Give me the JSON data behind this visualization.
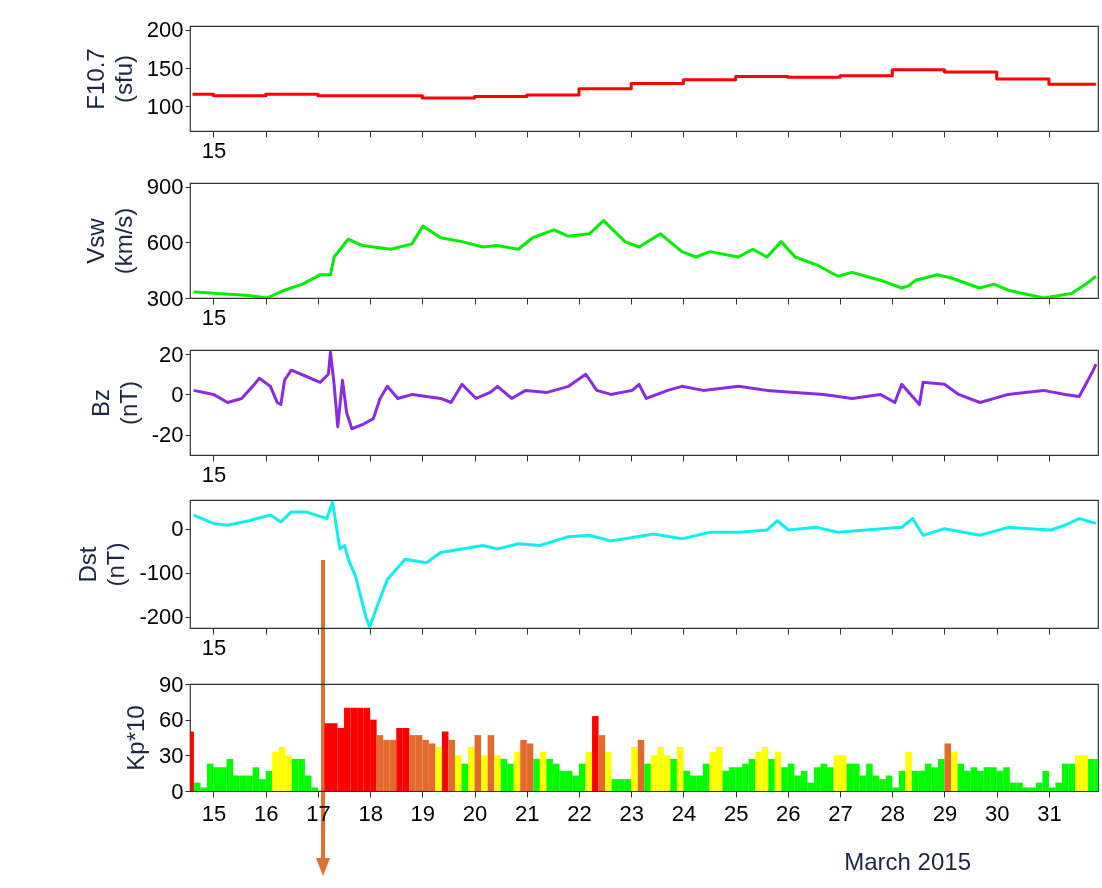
{
  "chart_data": [
    {
      "type": "step",
      "ylabel": "F10.7 (sfu)",
      "color": "#ff0000",
      "xlim": [
        14.55,
        31.94
      ],
      "ylim": [
        68,
        205
      ],
      "yticks": [
        100,
        150,
        200
      ],
      "tick_labels": "y",
      "annotations": [
        "15"
      ],
      "xticks": [
        15,
        16,
        17,
        18,
        19,
        20,
        21,
        22,
        23,
        24,
        25,
        26,
        27,
        28,
        29,
        30,
        31
      ],
      "x": [
        14.6,
        15,
        16,
        17,
        18,
        19,
        20,
        21,
        22,
        23,
        24,
        25,
        26,
        27,
        28,
        29,
        30,
        31,
        31.9
      ],
      "values": [
        116,
        114,
        116,
        114,
        114,
        111,
        113,
        115,
        123,
        130,
        135,
        139,
        138,
        140,
        148,
        145,
        136,
        129,
        129
      ]
    },
    {
      "type": "line",
      "ylabel": "Vsw (km/s)",
      "color": "#00ee00",
      "xlim": [
        14.55,
        31.94
      ],
      "ylim": [
        300,
        920
      ],
      "yticks": [
        300,
        600,
        900
      ],
      "tick_labels": "y",
      "annotations": [
        "15"
      ],
      "xticks": [
        15,
        16,
        17,
        18,
        19,
        20,
        21,
        22,
        23,
        24,
        25,
        26,
        27,
        28,
        29,
        30,
        31
      ],
      "x": [
        14.62,
        15,
        15.68,
        16.02,
        16.36,
        16.7,
        17.04,
        17.24,
        17.31,
        17.58,
        17.85,
        18.4,
        18.8,
        19.01,
        19.35,
        19.76,
        20.16,
        20.43,
        20.84,
        21.11,
        21.52,
        21.79,
        22.2,
        22.47,
        22.88,
        23.15,
        23.56,
        23.97,
        24.24,
        24.51,
        25.05,
        25.33,
        25.6,
        25.87,
        26.14,
        26.55,
        26.96,
        27.23,
        27.77,
        28.18,
        28.32,
        28.45,
        28.86,
        29.13,
        29.67,
        29.95,
        30.22,
        30.9,
        31.44,
        31.71,
        31.9
      ],
      "values": [
        333,
        325,
        313,
        300,
        342,
        375,
        425,
        425,
        521,
        617,
        583,
        563,
        592,
        688,
        625,
        604,
        575,
        583,
        563,
        625,
        667,
        633,
        646,
        717,
        604,
        575,
        646,
        550,
        521,
        550,
        521,
        563,
        521,
        604,
        521,
        479,
        417,
        438,
        396,
        354,
        367,
        396,
        425,
        408,
        354,
        375,
        342,
        300,
        325,
        375,
        417
      ]
    },
    {
      "type": "line",
      "ylabel": "Bz (nT)",
      "color": "#8a2be2",
      "xlim": [
        14.55,
        31.94
      ],
      "ylim": [
        -30,
        22
      ],
      "yticks": [
        -20,
        0,
        20
      ],
      "tick_labels": "y",
      "annotations": [
        "15"
      ],
      "xticks": [
        15,
        16,
        17,
        18,
        19,
        20,
        21,
        22,
        23,
        24,
        25,
        26,
        27,
        28,
        29,
        30,
        31
      ],
      "x": [
        14.62,
        15,
        15.27,
        15.54,
        15.75,
        15.88,
        16.09,
        16.22,
        16.29,
        16.36,
        16.49,
        16.77,
        17.04,
        17.2,
        17.24,
        17.31,
        17.38,
        17.47,
        17.55,
        17.65,
        17.85,
        18.06,
        18.19,
        18.33,
        18.53,
        18.81,
        19.08,
        19.35,
        19.55,
        19.76,
        20.03,
        20.3,
        20.44,
        20.71,
        20.98,
        21.39,
        21.8,
        22.13,
        22.34,
        22.61,
        23.02,
        23.15,
        23.29,
        23.7,
        23.97,
        24.38,
        25.06,
        25.6,
        26.14,
        26.69,
        27.23,
        27.77,
        28.05,
        28.18,
        28.52,
        28.59,
        29,
        29.27,
        29.68,
        30.22,
        30.9,
        31.31,
        31.58,
        31.85,
        31.9
      ],
      "values": [
        2,
        0,
        -4,
        -2,
        4,
        8,
        4,
        -4,
        -5,
        7,
        12,
        9,
        6,
        10,
        21,
        5,
        -16,
        7,
        -9,
        -17,
        -15,
        -12,
        -2,
        4,
        -2,
        0,
        -1,
        -2,
        -4,
        5,
        -2,
        1,
        4,
        -2,
        2,
        1,
        4,
        10,
        2,
        0,
        2,
        5,
        -2,
        2,
        4,
        2,
        4,
        2,
        1,
        0,
        -2,
        0,
        -4,
        5,
        -5,
        6,
        5,
        0,
        -4,
        0,
        2,
        0,
        -1,
        12,
        15
      ]
    },
    {
      "type": "line",
      "ylabel": "Dst (nT)",
      "color": "#11eeee",
      "xlim": [
        14.55,
        31.94
      ],
      "ylim": [
        -225,
        65
      ],
      "yticks": [
        -200,
        -100,
        0
      ],
      "tick_labels": "y",
      "annotations": [
        "15"
      ],
      "xticks": [
        15,
        16,
        17,
        18,
        19,
        20,
        21,
        22,
        23,
        24,
        25,
        26,
        27,
        28,
        29,
        30,
        31
      ],
      "x": [
        14.62,
        15,
        15.27,
        15.68,
        16.09,
        16.29,
        16.49,
        16.77,
        17.04,
        17.17,
        17.28,
        17.34,
        17.42,
        17.51,
        17.58,
        17.72,
        17.92,
        17.99,
        18.13,
        18.33,
        18.67,
        19.08,
        19.35,
        19.76,
        20.16,
        20.44,
        20.84,
        21.25,
        21.8,
        22.2,
        22.61,
        22.88,
        23.43,
        23.97,
        24.51,
        25.06,
        25.6,
        25.8,
        26.01,
        26.55,
        26.96,
        27.5,
        28.18,
        28.39,
        28.59,
        29,
        29.68,
        30.22,
        30.63,
        31.04,
        31.31,
        31.58,
        31.9
      ],
      "values": [
        31,
        12,
        8,
        18,
        31,
        15,
        38,
        38,
        28,
        23,
        60,
        15,
        -46,
        -38,
        -69,
        -108,
        -200,
        -223,
        -177,
        -115,
        -69,
        -77,
        -54,
        -46,
        -38,
        -46,
        -34,
        -38,
        -18,
        -15,
        -28,
        -23,
        -12,
        -23,
        -8,
        -8,
        -3,
        18,
        -3,
        3,
        -8,
        -3,
        3,
        23,
        -15,
        0,
        -15,
        3,
        0,
        -3,
        8,
        23,
        12
      ]
    },
    {
      "type": "bar",
      "ylabel": "Kp*10",
      "xlabel": "March 2015",
      "xlim": [
        14.55,
        31.94
      ],
      "ylim": [
        0,
        90
      ],
      "yticks": [
        0,
        30,
        60,
        90
      ],
      "xticks": [
        15,
        16,
        17,
        18,
        19,
        20,
        21,
        22,
        23,
        24,
        25,
        26,
        27,
        28,
        29,
        30,
        31
      ],
      "x": [
        14.5625,
        14.6875,
        14.8125,
        14.9375,
        15.0625,
        15.1875,
        15.3125,
        15.4375,
        15.5625,
        15.6875,
        15.8125,
        15.9375,
        16.0625,
        16.1875,
        16.3125,
        16.4375,
        16.5625,
        16.6875,
        16.8125,
        16.9375,
        17.0625,
        17.1875,
        17.3125,
        17.4375,
        17.5625,
        17.6875,
        17.8125,
        17.9375,
        18.0625,
        18.1875,
        18.3125,
        18.4375,
        18.5625,
        18.6875,
        18.8125,
        18.9375,
        19.0625,
        19.1875,
        19.3125,
        19.4375,
        19.5625,
        19.6875,
        19.8125,
        19.9375,
        20.0625,
        20.1875,
        20.3125,
        20.4375,
        20.5625,
        20.6875,
        20.8125,
        20.9375,
        21.0625,
        21.1875,
        21.3125,
        21.4375,
        21.5625,
        21.6875,
        21.8125,
        21.9375,
        22.0625,
        22.1875,
        22.3125,
        22.4375,
        22.5625,
        22.6875,
        22.8125,
        22.9375,
        23.0625,
        23.1875,
        23.3125,
        23.4375,
        23.5625,
        23.6875,
        23.8125,
        23.9375,
        24.0625,
        24.1875,
        24.3125,
        24.4375,
        24.5625,
        24.6875,
        24.8125,
        24.9375,
        25.0625,
        25.1875,
        25.3125,
        25.4375,
        25.5625,
        25.6875,
        25.8125,
        25.9375,
        26.0625,
        26.1875,
        26.3125,
        26.4375,
        26.5625,
        26.6875,
        26.8125,
        26.9375,
        27.0625,
        27.1875,
        27.3125,
        27.4375,
        27.5625,
        27.6875,
        27.8125,
        27.9375,
        28.0625,
        28.1875,
        28.3125,
        28.4375,
        28.5625,
        28.6875,
        28.8125,
        28.9375,
        29.0625,
        29.1875,
        29.3125,
        29.4375,
        29.5625,
        29.6875,
        29.8125,
        29.9375,
        30.0625,
        30.1875,
        30.3125,
        30.4375,
        30.5625,
        30.6875,
        30.8125,
        30.9375,
        31.0625,
        31.1875,
        31.3125,
        31.4375,
        31.5625,
        31.6875,
        31.8125,
        31.9375
      ],
      "values": [
        50,
        7,
        3,
        23,
        20,
        20,
        27,
        13,
        13,
        13,
        20,
        10,
        17,
        33,
        37,
        30,
        27,
        27,
        13,
        3,
        null,
        57,
        57,
        53,
        70,
        70,
        70,
        70,
        60,
        47,
        43,
        43,
        53,
        53,
        47,
        47,
        43,
        40,
        37,
        50,
        43,
        30,
        23,
        37,
        47,
        30,
        47,
        30,
        27,
        23,
        33,
        43,
        40,
        27,
        33,
        27,
        23,
        17,
        17,
        13,
        23,
        33,
        63,
        47,
        33,
        10,
        10,
        10,
        37,
        43,
        23,
        30,
        37,
        30,
        27,
        37,
        17,
        13,
        13,
        23,
        33,
        37,
        17,
        20,
        20,
        23,
        27,
        33,
        37,
        27,
        33,
        20,
        23,
        13,
        17,
        7,
        20,
        23,
        20,
        30,
        30,
        23,
        23,
        13,
        23,
        13,
        10,
        13,
        3,
        17,
        33,
        17,
        17,
        23,
        20,
        27,
        40,
        33,
        23,
        17,
        20,
        17,
        20,
        20,
        17,
        20,
        7,
        7,
        3,
        3,
        7,
        17,
        3,
        7,
        23,
        23,
        30,
        30,
        27,
        27
      ],
      "colors": [
        "#ff0000",
        "#00ff00",
        "#00ff00",
        "#00ff00",
        "#00ff00",
        "#00ff00",
        "#00ff00",
        "#00ff00",
        "#00ff00",
        "#00ff00",
        "#00ff00",
        "#00ff00",
        "#00ff00",
        "#ffff00",
        "#ffff00",
        "#ffff00",
        "#00ff00",
        "#00ff00",
        "#00ff00",
        "#00ff00",
        "#00ff00",
        "#ff0000",
        "#ff0000",
        "#ff0000",
        "#ff0000",
        "#ff0000",
        "#ff0000",
        "#ff0000",
        "#ff0000",
        "#e4692d",
        "#e4692d",
        "#e4692d",
        "#ff0000",
        "#ff0000",
        "#e4692d",
        "#e4692d",
        "#e4692d",
        "#e4692d",
        "#ffff00",
        "#ff0000",
        "#e4692d",
        "#ffff00",
        "#00ff00",
        "#ffff00",
        "#e4692d",
        "#ffff00",
        "#e4692d",
        "#ffff00",
        "#00ff00",
        "#00ff00",
        "#ffff00",
        "#e4692d",
        "#e4692d",
        "#00ff00",
        "#ffff00",
        "#00ff00",
        "#00ff00",
        "#00ff00",
        "#00ff00",
        "#00ff00",
        "#00ff00",
        "#ffff00",
        "#ff0000",
        "#e4692d",
        "#ffff00",
        "#00ff00",
        "#00ff00",
        "#00ff00",
        "#ffff00",
        "#e4692d",
        "#00ff00",
        "#ffff00",
        "#ffff00",
        "#ffff00",
        "#00ff00",
        "#ffff00",
        "#00ff00",
        "#00ff00",
        "#00ff00",
        "#00ff00",
        "#ffff00",
        "#ffff00",
        "#00ff00",
        "#00ff00",
        "#00ff00",
        "#00ff00",
        "#00ff00",
        "#ffff00",
        "#ffff00",
        "#00ff00",
        "#ffff00",
        "#00ff00",
        "#00ff00",
        "#00ff00",
        "#00ff00",
        "#00ff00",
        "#00ff00",
        "#00ff00",
        "#00ff00",
        "#ffff00",
        "#ffff00",
        "#00ff00",
        "#00ff00",
        "#00ff00",
        "#00ff00",
        "#00ff00",
        "#00ff00",
        "#00ff00",
        "#00ff00",
        "#00ff00",
        "#ffff00",
        "#00ff00",
        "#00ff00",
        "#00ff00",
        "#00ff00",
        "#00ff00",
        "#e4692d",
        "#ffff00",
        "#00ff00",
        "#00ff00",
        "#00ff00",
        "#00ff00",
        "#00ff00",
        "#00ff00",
        "#00ff00",
        "#00ff00",
        "#00ff00",
        "#00ff00",
        "#00ff00",
        "#00ff00",
        "#00ff00",
        "#00ff00",
        "#00ff00",
        "#00ff00",
        "#00ff00",
        "#00ff00",
        "#ffff00",
        "#ffff00",
        "#00ff00",
        "#00ff00"
      ]
    }
  ]
}
